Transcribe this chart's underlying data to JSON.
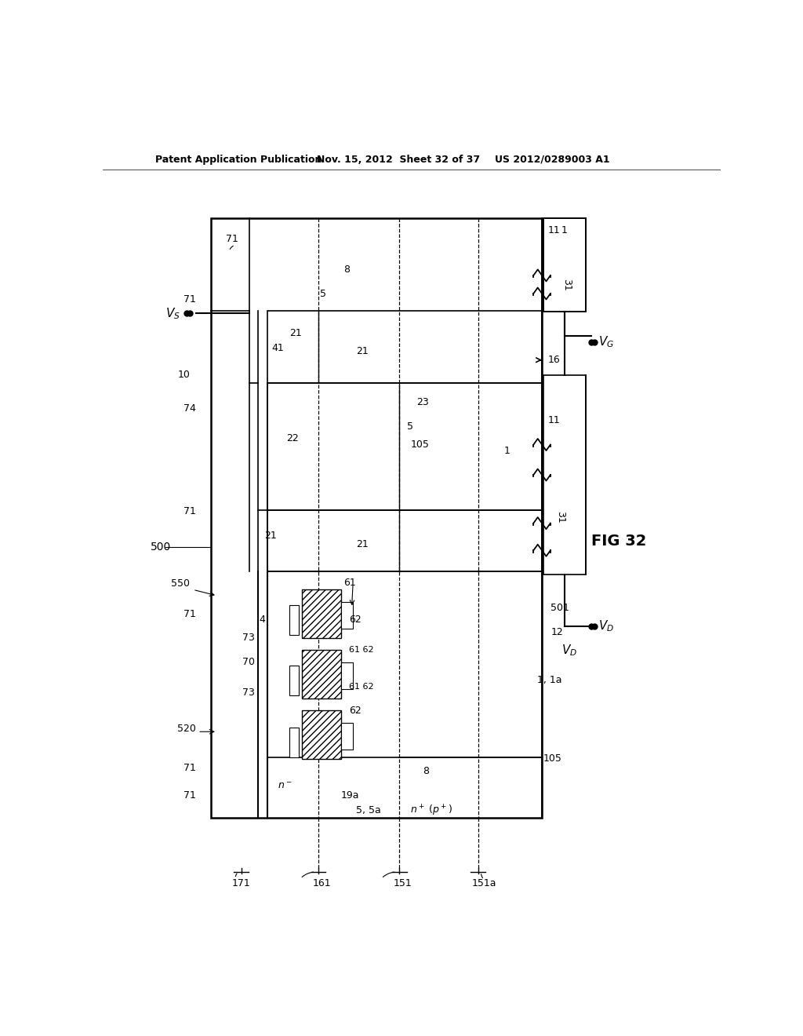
{
  "title_left": "Patent Application Publication",
  "title_mid": "Nov. 15, 2012  Sheet 32 of 37",
  "title_right": "US 2012/0289003 A1",
  "fig_label": "FIG 32",
  "bg_color": "#ffffff"
}
